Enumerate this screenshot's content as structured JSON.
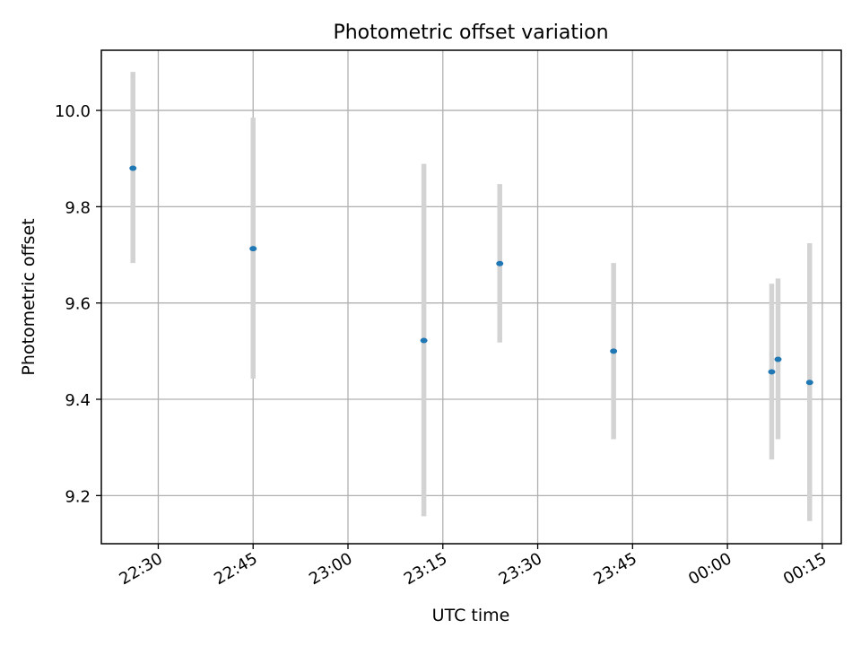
{
  "chart_data": {
    "type": "scatter",
    "title": "Photometric offset variation",
    "xlabel": "UTC time",
    "ylabel": "Photometric offset",
    "x_tick_labels": [
      "22:30",
      "22:45",
      "23:00",
      "23:15",
      "23:30",
      "23:45",
      "00:00",
      "00:15"
    ],
    "y_tick_labels": [
      "9.2",
      "9.4",
      "9.6",
      "9.8",
      "10.0"
    ],
    "y_ticks": [
      9.2,
      9.4,
      9.6,
      9.8,
      10.0
    ],
    "xlim": [
      "22:21",
      "00:18"
    ],
    "ylim": [
      9.1,
      10.125
    ],
    "grid": true,
    "colors": {
      "point": "#1f77b4",
      "error_bar": "#d3d3d3",
      "grid": "#b0b0b0"
    },
    "points": [
      {
        "x": "22:26",
        "y": 9.88,
        "yerr_low": 9.683,
        "yerr_high": 10.08
      },
      {
        "x": "22:45",
        "y": 9.713,
        "yerr_low": 9.443,
        "yerr_high": 9.985
      },
      {
        "x": "23:12",
        "y": 9.522,
        "yerr_low": 9.157,
        "yerr_high": 9.889
      },
      {
        "x": "23:24",
        "y": 9.682,
        "yerr_low": 9.518,
        "yerr_high": 9.847
      },
      {
        "x": "23:42",
        "y": 9.5,
        "yerr_low": 9.317,
        "yerr_high": 9.683
      },
      {
        "x": "00:07",
        "y": 9.457,
        "yerr_low": 9.275,
        "yerr_high": 9.64
      },
      {
        "x": "00:08",
        "y": 9.483,
        "yerr_low": 9.317,
        "yerr_high": 9.651
      },
      {
        "x": "00:13",
        "y": 9.435,
        "yerr_low": 9.147,
        "yerr_high": 9.724
      }
    ]
  }
}
